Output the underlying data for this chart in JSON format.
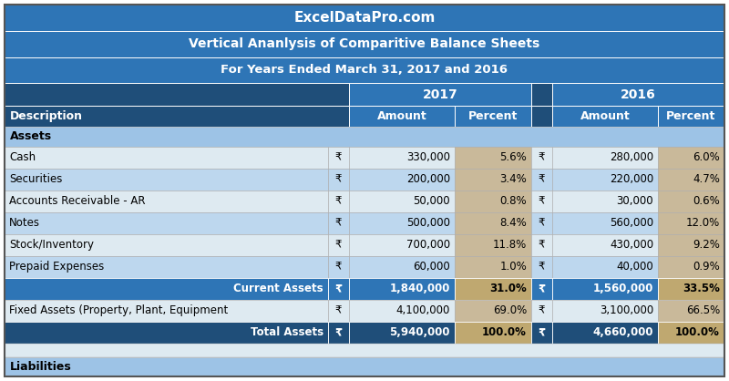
{
  "title1": "ExcelDataPro.com",
  "title2": "Vertical Ananlysis of Comparitive Balance Sheets",
  "title3": "For Years Ended March 31, 2017 and 2016",
  "header_year_2017": "2017",
  "header_year_2016": "2016",
  "header_amount": "Amount",
  "header_percent": "Percent",
  "header_desc": "Description",
  "section_assets": "Assets",
  "section_liabilities": "Liabilities",
  "rupee": "₹",
  "rows": [
    {
      "desc": "Cash",
      "sym17": "₹",
      "amt17": "330,000",
      "pct17": "5.6%",
      "sym16": "₹",
      "amt16": "280,000",
      "pct16": "6.0%",
      "type": "data"
    },
    {
      "desc": "Securities",
      "sym17": "₹",
      "amt17": "200,000",
      "pct17": "3.4%",
      "sym16": "₹",
      "amt16": "220,000",
      "pct16": "4.7%",
      "type": "data"
    },
    {
      "desc": "Accounts Receivable - AR",
      "sym17": "₹",
      "amt17": "50,000",
      "pct17": "0.8%",
      "sym16": "₹",
      "amt16": "30,000",
      "pct16": "0.6%",
      "type": "data"
    },
    {
      "desc": "Notes",
      "sym17": "₹",
      "amt17": "500,000",
      "pct17": "8.4%",
      "sym16": "₹",
      "amt16": "560,000",
      "pct16": "12.0%",
      "type": "data"
    },
    {
      "desc": "Stock/Inventory",
      "sym17": "₹",
      "amt17": "700,000",
      "pct17": "11.8%",
      "sym16": "₹",
      "amt16": "430,000",
      "pct16": "9.2%",
      "type": "data"
    },
    {
      "desc": "Prepaid Expenses",
      "sym17": "₹",
      "amt17": "60,000",
      "pct17": "1.0%",
      "sym16": "₹",
      "amt16": "40,000",
      "pct16": "0.9%",
      "type": "data"
    },
    {
      "desc": "Current Assets",
      "sym17": "₹",
      "amt17": "1,840,000",
      "pct17": "31.0%",
      "sym16": "₹",
      "amt16": "1,560,000",
      "pct16": "33.5%",
      "type": "subtotal"
    },
    {
      "desc": "Fixed Assets (Property, Plant, Equipment",
      "sym17": "₹",
      "amt17": "4,100,000",
      "pct17": "69.0%",
      "sym16": "₹",
      "amt16": "3,100,000",
      "pct16": "66.5%",
      "type": "data"
    },
    {
      "desc": "Total Assets",
      "sym17": "₹",
      "amt17": "5,940,000",
      "pct17": "100.0%",
      "sym16": "₹",
      "amt16": "4,660,000",
      "pct16": "100.0%",
      "type": "total"
    }
  ],
  "colors": {
    "dark_blue": "#1F4E79",
    "medium_blue": "#2E75B6",
    "light_blue": "#BDD7EE",
    "very_light_blue": "#DEEAF1",
    "white": "#FFFFFF",
    "tan": "#C9B99A",
    "gold": "#BFA870",
    "section_blue": "#9DC3E6",
    "subtotal_blue": "#2E75B6",
    "total_blue": "#1F4E79",
    "text_white": "#FFFFFF",
    "text_black": "#000000",
    "border_light": "#FFFFFF",
    "border_gray": "#AAAAAA"
  },
  "figsize": [
    8.0,
    4.18
  ],
  "dpi": 100
}
